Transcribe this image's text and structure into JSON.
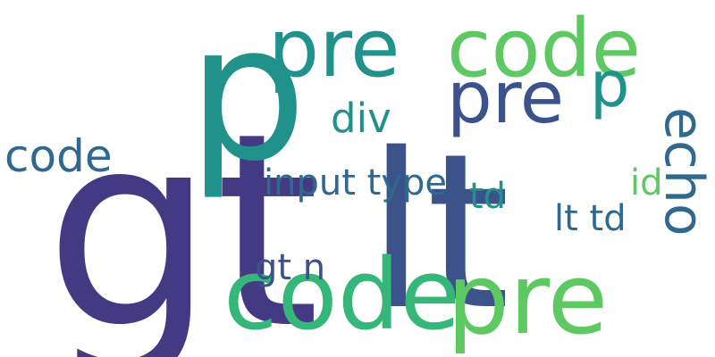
{
  "words": [
    {
      "text": "gt",
      "size": 300,
      "color": "#443983",
      "vertical": false
    },
    {
      "text": "lt",
      "size": 240,
      "color": "#3b528b",
      "vertical": false
    },
    {
      "text": "p",
      "size": 210,
      "color": "#21918c",
      "vertical": false
    },
    {
      "text": "code",
      "size": 110,
      "color": "#35b779",
      "vertical": false
    },
    {
      "text": "pre",
      "size": 110,
      "color": "#5ec962",
      "vertical": false
    },
    {
      "text": "pre",
      "size": 90,
      "color": "#21918c",
      "vertical": false
    },
    {
      "text": "code",
      "size": 90,
      "color": "#5ec962",
      "vertical": false
    },
    {
      "text": "pre",
      "size": 80,
      "color": "#3b528b",
      "vertical": false
    },
    {
      "text": "p",
      "size": 70,
      "color": "#21918c",
      "vertical": false
    },
    {
      "text": "echo",
      "size": 60,
      "color": "#31688e",
      "vertical": true
    },
    {
      "text": "code",
      "size": 50,
      "color": "#31688e",
      "vertical": false
    },
    {
      "text": "div",
      "size": 45,
      "color": "#21918c",
      "vertical": false
    },
    {
      "text": "input type",
      "size": 40,
      "color": "#31688e",
      "vertical": false
    },
    {
      "text": "id",
      "size": 40,
      "color": "#5ec962",
      "vertical": false
    },
    {
      "text": "td",
      "size": 40,
      "color": "#21918c",
      "vertical": false
    },
    {
      "text": "lt td",
      "size": 40,
      "color": "#31688e",
      "vertical": false
    },
    {
      "text": "gt n",
      "size": 40,
      "color": "#3b528b",
      "vertical": false
    }
  ]
}
